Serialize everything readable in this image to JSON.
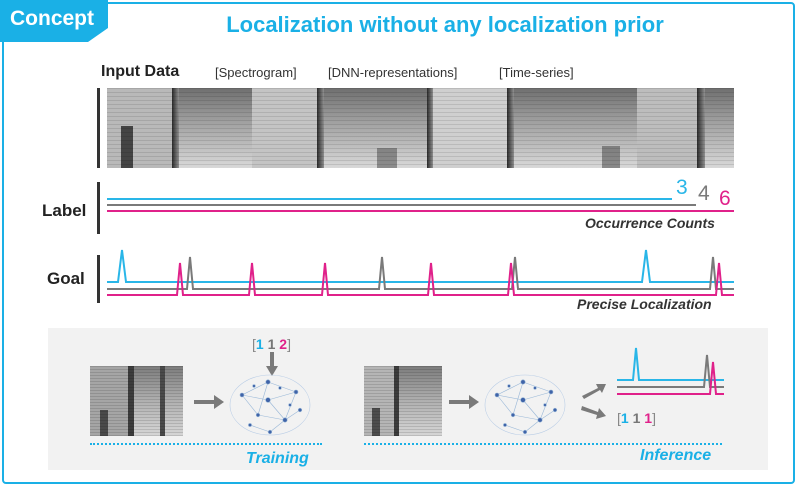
{
  "header": {
    "tab_label": "Concept",
    "title": "Localization without any localization prior"
  },
  "input": {
    "label": "Input Data",
    "tags": [
      "[Spectrogram]",
      "[DNN-representations]",
      "[Time-series]"
    ]
  },
  "label_row": {
    "label": "Label",
    "counts": [
      "3",
      "4",
      "6"
    ],
    "caption": "Occurrence Counts"
  },
  "goal_row": {
    "label": "Goal",
    "caption": "Precise Localization"
  },
  "training": {
    "label": "Training",
    "counts": [
      "1",
      "1",
      "2"
    ],
    "open": "[",
    "close": "]"
  },
  "inference": {
    "label": "Inference",
    "counts": [
      "1",
      "1",
      "1"
    ],
    "open": "[",
    "close": "]"
  },
  "colors": {
    "accent": "#1ab0e6",
    "series_blue": "#29b6e8",
    "series_gray": "#7a7a7a",
    "series_pink": "#e0218a",
    "panel_bg": "#f2f2f2"
  },
  "icons": [
    "arrow-icon",
    "brain-network-icon"
  ]
}
